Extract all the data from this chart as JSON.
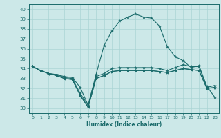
{
  "xlabel": "Humidex (Indice chaleur)",
  "bg_color": "#cce8e8",
  "grid_color": "#aad4d4",
  "line_color": "#1a6b6b",
  "xlim": [
    -0.5,
    23.5
  ],
  "ylim": [
    29.5,
    40.5
  ],
  "yticks": [
    30,
    31,
    32,
    33,
    34,
    35,
    36,
    37,
    38,
    39,
    40
  ],
  "xticks": [
    0,
    1,
    2,
    3,
    4,
    5,
    6,
    7,
    8,
    9,
    10,
    11,
    12,
    13,
    14,
    15,
    16,
    17,
    18,
    19,
    20,
    21,
    22,
    23
  ],
  "series": [
    [
      34.2,
      33.8,
      33.5,
      33.4,
      33.2,
      33.1,
      32.1,
      30.3,
      33.4,
      36.3,
      37.8,
      38.8,
      39.2,
      39.5,
      39.2,
      39.1,
      38.3,
      36.2,
      35.2,
      34.8,
      34.1,
      34.3,
      32.2,
      31.1
    ],
    [
      34.2,
      33.8,
      33.5,
      33.4,
      33.1,
      33.0,
      31.5,
      30.3,
      33.2,
      33.5,
      34.0,
      34.1,
      34.1,
      34.1,
      34.1,
      34.1,
      34.0,
      33.8,
      34.1,
      34.4,
      34.2,
      34.2,
      32.1,
      32.3
    ],
    [
      34.2,
      33.8,
      33.5,
      33.3,
      33.0,
      32.9,
      31.3,
      30.1,
      33.0,
      33.3,
      33.7,
      33.8,
      33.8,
      33.8,
      33.8,
      33.8,
      33.7,
      33.6,
      33.8,
      34.0,
      33.9,
      33.8,
      32.0,
      32.1
    ],
    [
      34.2,
      33.8,
      33.5,
      33.3,
      33.0,
      32.9,
      31.3,
      30.1,
      33.0,
      33.3,
      33.7,
      33.8,
      33.8,
      33.8,
      33.8,
      33.8,
      33.7,
      33.6,
      33.8,
      34.0,
      33.9,
      33.8,
      32.0,
      32.1
    ]
  ]
}
